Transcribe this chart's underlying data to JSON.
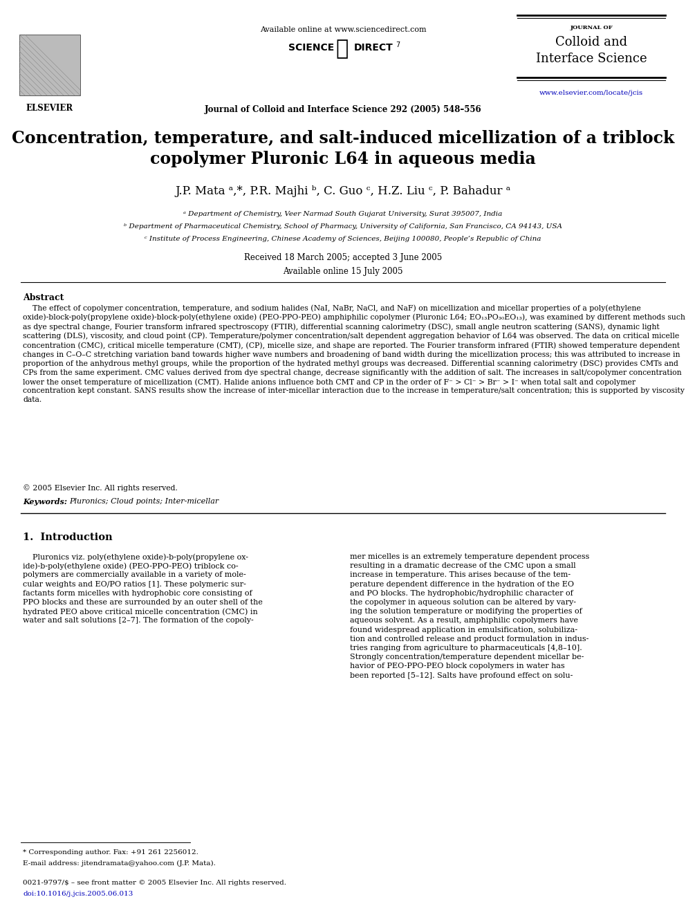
{
  "bg_color": "#ffffff",
  "header_available": "Available online at www.sciencedirect.com",
  "header_journal_line": "Journal of Colloid and Interface Science 292 (2005) 548–556",
  "journal_name_small": "JOURNAL OF",
  "journal_name_line1": "Colloid and",
  "journal_name_line2": "Interface Science",
  "website": "www.elsevier.com/locate/jcis",
  "elsevier_label": "ELSEVIER",
  "title_line1": "Concentration, temperature, and salt-induced micellization of a triblock",
  "title_line2": "copolymer Pluronic L64 in aqueous media",
  "authors_line": "J.P. Mata ᵃ,*, P.R. Majhi ᵇ, C. Guo ᶜ, H.Z. Liu ᶜ, P. Bahadur ᵃ",
  "affil_a": "ᵃ Department of Chemistry, Veer Narmad South Gujarat University, Surat 395007, India",
  "affil_b": "ᵇ Department of Pharmaceutical Chemistry, School of Pharmacy, University of California, San Francisco, CA 94143, USA",
  "affil_c": "ᶜ Institute of Process Engineering, Chinese Academy of Sciences, Beijing 100080, People’s Republic of China",
  "received": "Received 18 March 2005; accepted 3 June 2005",
  "available": "Available online 15 July 2005",
  "abstract_title": "Abstract",
  "abstract_text": "    The effect of copolymer concentration, temperature, and sodium halides (NaI, NaBr, NaCl, and NaF) on micellization and micellar properties of a poly(ethylene oxide)-block-poly(propylene oxide)-block-poly(ethylene oxide) (PEO-PPO-PEO) amphiphilic copolymer (Pluronic L64; EO₁₃PO₃₀EO₁₃), was examined by different methods such as dye spectral change, Fourier transform infrared spectroscopy (FTIR), differential scanning calorimetry (DSC), small angle neutron scattering (SANS), dynamic light scattering (DLS), viscosity, and cloud point (CP). Temperature/polymer concentration/salt dependent aggregation behavior of L64 was observed. The data on critical micelle concentration (CMC), critical micelle temperature (CMT), (CP), micelle size, and shape are reported. The Fourier transform infrared (FTIR) showed temperature dependent changes in C–O–C stretching variation band towards higher wave numbers and broadening of band width during the micellization process; this was attributed to increase in proportion of the anhydrous methyl groups, while the proportion of the hydrated methyl groups was decreased. Differential scanning calorimetry (DSC) provides CMTs and CPs from the same experiment. CMC values derived from dye spectral change, decrease significantly with the addition of salt. The increases in salt/copolymer concentration lower the onset temperature of micellization (CMT). Halide anions influence both CMT and CP in the order of F⁻ > Cl⁻ > Br⁻ > I⁻ when total salt and copolymer concentration kept constant. SANS results show the increase of inter-micellar interaction due to the increase in temperature/salt concentration; this is supported by viscosity data.",
  "copyright": "© 2005 Elsevier Inc. All rights reserved.",
  "keywords_label": "Keywords:",
  "keywords": "Pluronics; Cloud points; Inter-micellar",
  "section1_title": "1.  Introduction",
  "intro_col1_lines": [
    "    Pluronics viz. poly(ethylene oxide)-b-poly(propylene ox-",
    "ide)-b-poly(ethylene oxide) (PEO-PPO-PEO) triblock co-",
    "polymers are commercially available in a variety of mole-",
    "cular weights and EO/PO ratios [1]. These polymeric sur-",
    "factants form micelles with hydrophobic core consisting of",
    "PPO blocks and these are surrounded by an outer shell of the",
    "hydrated PEO above critical micelle concentration (CMC) in",
    "water and salt solutions [2–7]. The formation of the copoly-"
  ],
  "intro_col2_lines": [
    "mer micelles is an extremely temperature dependent process",
    "resulting in a dramatic decrease of the CMC upon a small",
    "increase in temperature. This arises because of the tem-",
    "perature dependent difference in the hydration of the EO",
    "and PO blocks. The hydrophobic/hydrophilic character of",
    "the copolymer in aqueous solution can be altered by vary-",
    "ing the solution temperature or modifying the properties of",
    "aqueous solvent. As a result, amphiphilic copolymers have",
    "found widespread application in emulsification, solubiliza-",
    "tion and controlled release and product formulation in indus-",
    "tries ranging from agriculture to pharmaceuticals [4,8–10].",
    "Strongly concentration/temperature dependent micellar be-",
    "havior of PEO-PPO-PEO block copolymers in water has",
    "been reported [5–12]. Salts have profound effect on solu-"
  ],
  "footnote_line1": "* Corresponding author. Fax: +91 261 2256012.",
  "footnote_line2": "E-mail address: jitendramata@yahoo.com (J.P. Mata).",
  "footnote_line3": "0021-9797/$ – see front matter © 2005 Elsevier Inc. All rights reserved.",
  "footnote_line4": "doi:10.1016/j.jcis.2005.06.013"
}
